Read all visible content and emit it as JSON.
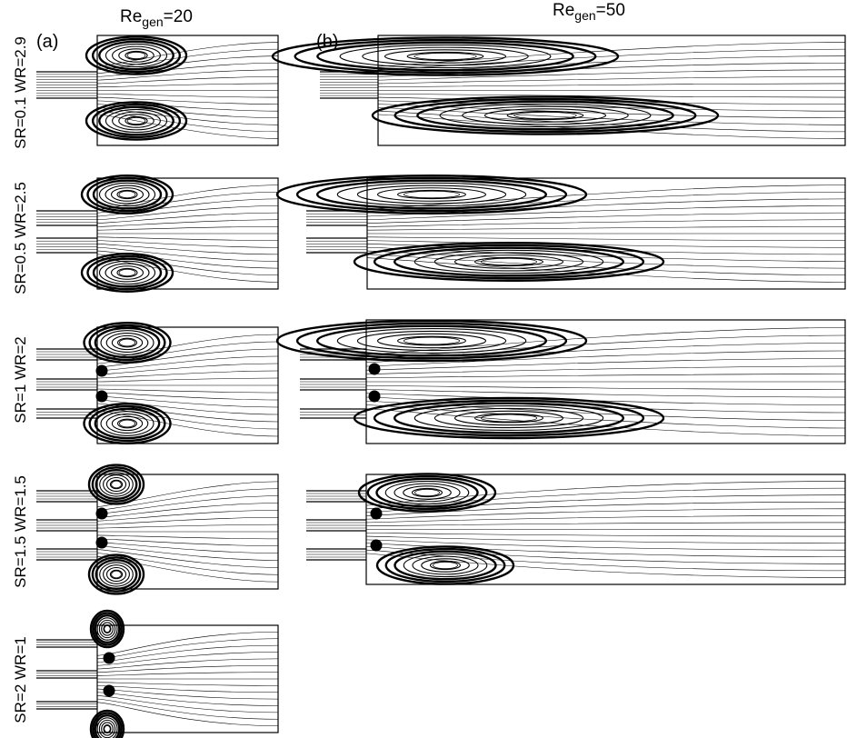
{
  "columns": [
    {
      "label": "(a)",
      "re_base": "Re",
      "re_sub": "gen",
      "re_value": "=20"
    },
    {
      "label": "(b)",
      "re_base": "Re",
      "re_sub": "gen",
      "re_value": "=50"
    }
  ],
  "rows": [
    {
      "label": "SR=0.1 WR=2.9"
    },
    {
      "label": "SR=0.5 WR=2.5"
    },
    {
      "label": "SR=1 WR=2"
    },
    {
      "label": "SR=1.5 WR=1.5"
    },
    {
      "label": "SR=2 WR=1"
    }
  ],
  "colors": {
    "lines": "#000000",
    "background": "#ffffff"
  }
}
